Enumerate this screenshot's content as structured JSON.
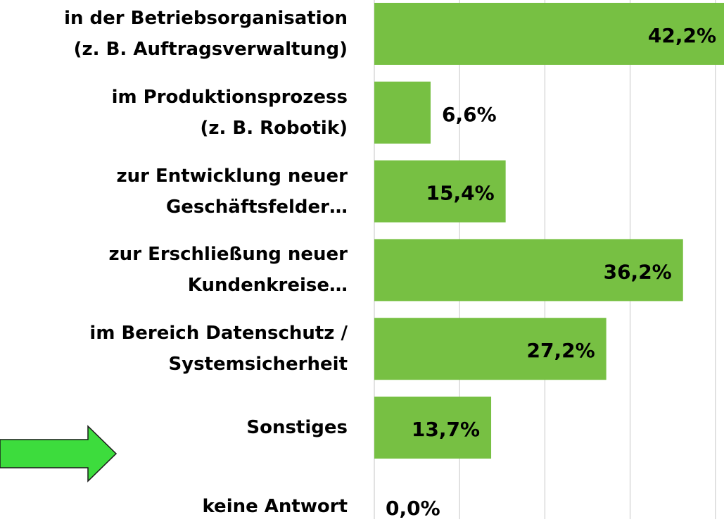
{
  "chart_data": {
    "type": "bar",
    "orientation": "horizontal",
    "categories": [
      "in der Betriebsorganisation\n(z. B. Auftragsverwaltung)",
      "im Produktionsprozess\n(z. B. Robotik)",
      "zur Entwicklung neuer\nGeschäftsfelder…",
      "zur Erschließung neuer\nKundenkreise…",
      "im Bereich Datenschutz /\nSystemsicherheit",
      "Sonstiges",
      "keine Antwort"
    ],
    "values": [
      42.2,
      6.6,
      15.4,
      36.2,
      27.2,
      13.7,
      0.0
    ],
    "value_labels": [
      "42,2%",
      "6,6%",
      "15,4%",
      "36,2%",
      "27,2%",
      "13,7%",
      "0,0%"
    ],
    "color": "#77c043",
    "xlim": [
      0,
      50
    ],
    "xticks": [
      0,
      10,
      20,
      30,
      40,
      50
    ],
    "grid": true
  }
}
